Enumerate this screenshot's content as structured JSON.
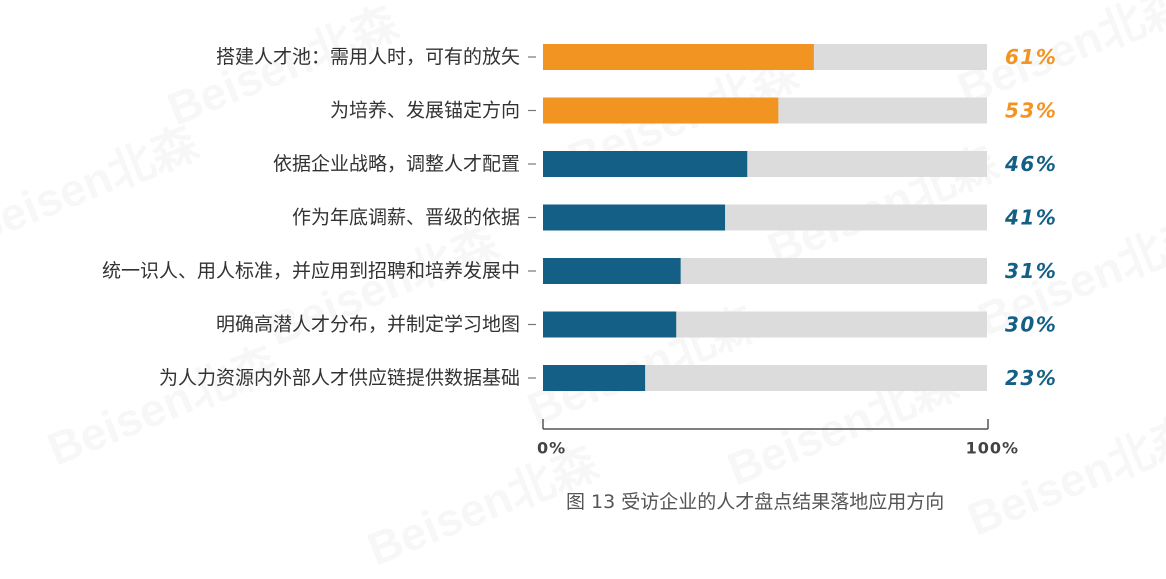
{
  "watermark": "Beisen北森",
  "caption": "图 13  受访企业的人才盘点结果落地应用方向",
  "colors": {
    "highlight": "#F29422",
    "primary": "#135F86",
    "track": "#DCDCDC",
    "label": "#333333",
    "axis": "#555555"
  },
  "chart_data": {
    "type": "bar",
    "orientation": "horizontal",
    "categories": [
      "搭建人才池：需用人时，可有的放矢",
      "为培养、发展锚定方向",
      "依据企业战略，调整人才配置",
      "作为年底调薪、晋级的依据",
      "统一识人、用人标准，并应用到招聘和培养发展中",
      "明确高潜人才分布，并制定学习地图",
      "为人力资源内外部人才供应链提供数据基础"
    ],
    "values": [
      61,
      53,
      46,
      41,
      31,
      30,
      23
    ],
    "value_labels": [
      "61%",
      "53%",
      "46%",
      "41%",
      "31%",
      "30%",
      "23%"
    ],
    "highlighted": [
      true,
      true,
      false,
      false,
      false,
      false,
      false
    ],
    "xlim": [
      0,
      100
    ],
    "x_ticks": [
      "0%",
      "100%"
    ],
    "grid": false,
    "legend": "none"
  }
}
